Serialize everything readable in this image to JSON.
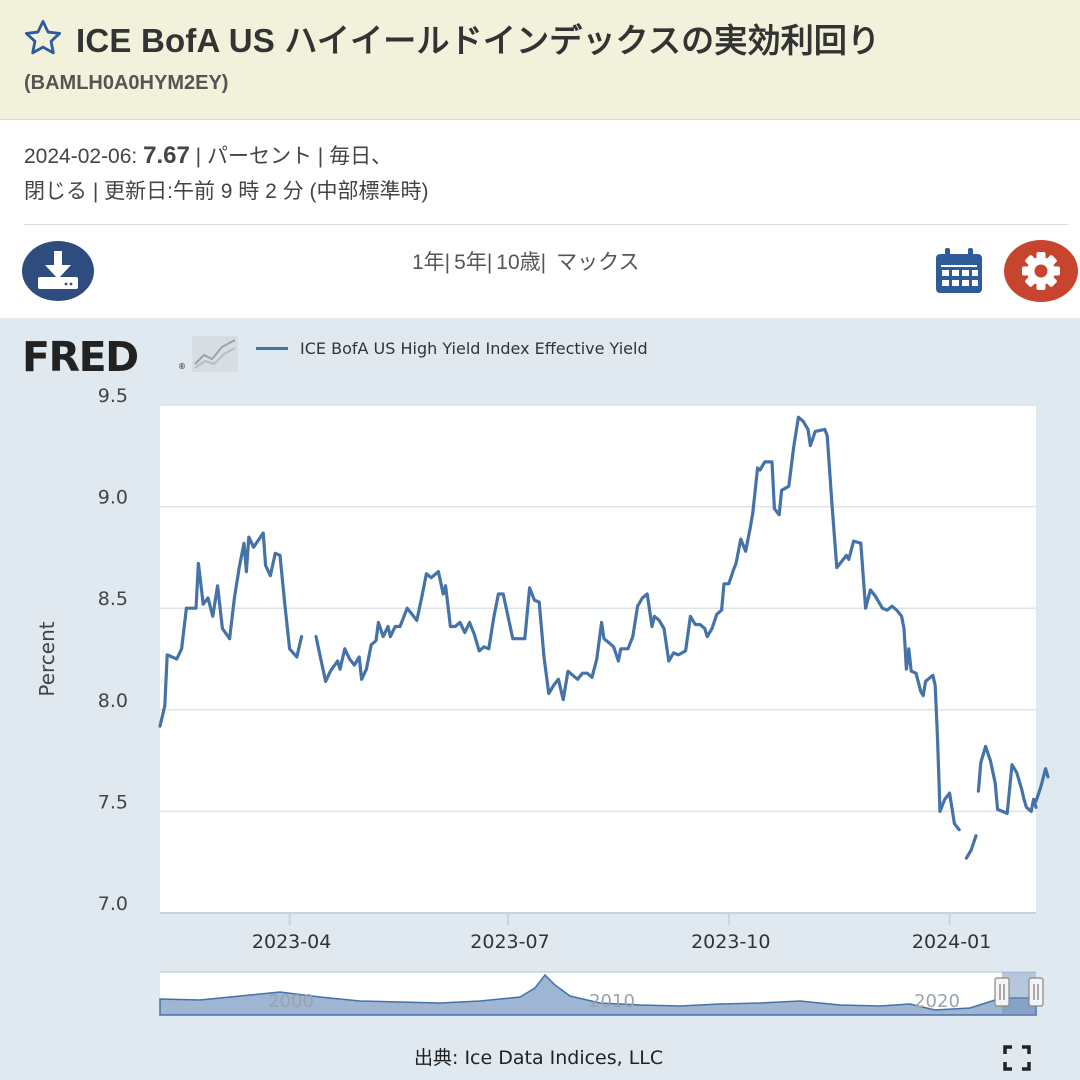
{
  "header": {
    "title": "ICE BofA US ハイイールドインデックスの実効利回り",
    "series_id": "(BAMLH0A0HYM2EY)",
    "star_icon": "star-outline-icon"
  },
  "meta": {
    "date": "2024-02-06:",
    "value": "7.67",
    "details": "| パーセント | 毎日、",
    "line2": "閉じる | 更新日:午前 9 時 2 分 (中部標準時)"
  },
  "toolbar": {
    "download_icon": "download-icon",
    "ranges": [
      "1年|",
      "5年|",
      "10歳|",
      "マックス"
    ],
    "calendar_icon": "calendar-icon",
    "settings_icon": "gear-icon"
  },
  "chart": {
    "logo": "FRED",
    "logo_reg": "®",
    "legend_label": "ICE BofA US High Yield Index Effective Yield",
    "source": "出典: Ice Data Indices, LLC",
    "fullscreen_icon": "fullscreen-icon",
    "navigator_labels": [
      "2000",
      "2010",
      "2020"
    ]
  },
  "colors": {
    "series": "#4572a7",
    "header_bg": "#f2f2dc",
    "chart_bg": "#e1e9f0",
    "download": "#2e4d7e",
    "settings": "#c7452e"
  },
  "chart_data": {
    "type": "line",
    "xlabel": "",
    "ylabel": "Percent",
    "ylim": [
      7.0,
      9.5
    ],
    "yticks": [
      "9.5",
      "9.0",
      "8.5",
      "8.0",
      "7.5",
      "7.0"
    ],
    "xticks": [
      "2023-04",
      "2023-07",
      "2023-10",
      "2024-01"
    ],
    "xlim": [
      "2023-02-06",
      "2024-02-06"
    ],
    "grid": true,
    "series": [
      {
        "name": "ICE BofA US High Yield Index Effective Yield",
        "segments": [
          [
            [
              "2023-02-06",
              7.92
            ],
            [
              "2023-02-08",
              8.02
            ],
            [
              "2023-02-09",
              8.27
            ],
            [
              "2023-02-13",
              8.25
            ],
            [
              "2023-02-15",
              8.3
            ],
            [
              "2023-02-17",
              8.5
            ],
            [
              "2023-02-21",
              8.5
            ],
            [
              "2023-02-22",
              8.72
            ],
            [
              "2023-02-24",
              8.52
            ],
            [
              "2023-02-26",
              8.55
            ],
            [
              "2023-02-28",
              8.46
            ],
            [
              "2023-03-02",
              8.61
            ],
            [
              "2023-03-04",
              8.4
            ],
            [
              "2023-03-07",
              8.35
            ],
            [
              "2023-03-09",
              8.55
            ],
            [
              "2023-03-11",
              8.7
            ],
            [
              "2023-03-13",
              8.82
            ],
            [
              "2023-03-14",
              8.68
            ],
            [
              "2023-03-15",
              8.85
            ],
            [
              "2023-03-17",
              8.8
            ],
            [
              "2023-03-21",
              8.87
            ],
            [
              "2023-03-22",
              8.71
            ],
            [
              "2023-03-24",
              8.66
            ],
            [
              "2023-03-26",
              8.77
            ],
            [
              "2023-03-28",
              8.76
            ],
            [
              "2023-03-30",
              8.52
            ],
            [
              "2023-04-01",
              8.3
            ],
            [
              "2023-04-04",
              8.26
            ],
            [
              "2023-04-06",
              8.36
            ]
          ],
          [
            [
              "2023-04-12",
              8.36
            ],
            [
              "2023-04-14",
              8.25
            ],
            [
              "2023-04-16",
              8.14
            ],
            [
              "2023-04-18",
              8.19
            ],
            [
              "2023-04-21",
              8.24
            ],
            [
              "2023-04-22",
              8.2
            ],
            [
              "2023-04-24",
              8.3
            ],
            [
              "2023-04-26",
              8.25
            ],
            [
              "2023-04-28",
              8.22
            ],
            [
              "2023-04-30",
              8.26
            ],
            [
              "2023-05-01",
              8.15
            ],
            [
              "2023-05-03",
              8.2
            ],
            [
              "2023-05-05",
              8.32
            ],
            [
              "2023-05-07",
              8.34
            ],
            [
              "2023-05-08",
              8.43
            ],
            [
              "2023-05-10",
              8.36
            ],
            [
              "2023-05-12",
              8.41
            ],
            [
              "2023-05-13",
              8.36
            ],
            [
              "2023-05-15",
              8.41
            ],
            [
              "2023-05-17",
              8.41
            ],
            [
              "2023-05-20",
              8.5
            ],
            [
              "2023-05-22",
              8.47
            ],
            [
              "2023-05-24",
              8.44
            ],
            [
              "2023-05-26",
              8.55
            ],
            [
              "2023-05-28",
              8.67
            ],
            [
              "2023-05-30",
              8.65
            ],
            [
              "2023-06-02",
              8.68
            ],
            [
              "2023-06-04",
              8.57
            ],
            [
              "2023-06-05",
              8.61
            ],
            [
              "2023-06-07",
              8.41
            ],
            [
              "2023-06-09",
              8.41
            ],
            [
              "2023-06-11",
              8.43
            ],
            [
              "2023-06-13",
              8.38
            ],
            [
              "2023-06-15",
              8.43
            ],
            [
              "2023-06-17",
              8.37
            ],
            [
              "2023-06-19",
              8.29
            ],
            [
              "2023-06-21",
              8.31
            ],
            [
              "2023-06-23",
              8.3
            ],
            [
              "2023-06-25",
              8.45
            ],
            [
              "2023-06-27",
              8.57
            ],
            [
              "2023-06-29",
              8.57
            ],
            [
              "2023-07-01",
              8.46
            ],
            [
              "2023-07-03",
              8.35
            ],
            [
              "2023-07-06",
              8.35
            ],
            [
              "2023-07-08",
              8.35
            ],
            [
              "2023-07-10",
              8.6
            ],
            [
              "2023-07-12",
              8.54
            ],
            [
              "2023-07-14",
              8.53
            ],
            [
              "2023-07-16",
              8.26
            ],
            [
              "2023-07-18",
              8.08
            ],
            [
              "2023-07-20",
              8.12
            ],
            [
              "2023-07-22",
              8.15
            ],
            [
              "2023-07-24",
              8.05
            ],
            [
              "2023-07-26",
              8.19
            ],
            [
              "2023-07-28",
              8.17
            ],
            [
              "2023-07-30",
              8.15
            ],
            [
              "2023-08-01",
              8.18
            ],
            [
              "2023-08-03",
              8.18
            ],
            [
              "2023-08-05",
              8.16
            ],
            [
              "2023-08-07",
              8.25
            ],
            [
              "2023-08-09",
              8.43
            ],
            [
              "2023-08-10",
              8.35
            ],
            [
              "2023-08-12",
              8.33
            ],
            [
              "2023-08-14",
              8.31
            ],
            [
              "2023-08-16",
              8.24
            ],
            [
              "2023-08-17",
              8.3
            ],
            [
              "2023-08-20",
              8.3
            ],
            [
              "2023-08-22",
              8.36
            ],
            [
              "2023-08-24",
              8.51
            ],
            [
              "2023-08-26",
              8.55
            ],
            [
              "2023-08-28",
              8.57
            ],
            [
              "2023-08-30",
              8.41
            ],
            [
              "2023-08-31",
              8.46
            ],
            [
              "2023-09-02",
              8.44
            ],
            [
              "2023-09-04",
              8.4
            ],
            [
              "2023-09-06",
              8.24
            ],
            [
              "2023-09-08",
              8.28
            ],
            [
              "2023-09-10",
              8.27
            ],
            [
              "2023-09-13",
              8.29
            ],
            [
              "2023-09-15",
              8.46
            ],
            [
              "2023-09-17",
              8.42
            ],
            [
              "2023-09-19",
              8.42
            ],
            [
              "2023-09-21",
              8.4
            ],
            [
              "2023-09-22",
              8.36
            ],
            [
              "2023-09-24",
              8.4
            ],
            [
              "2023-09-26",
              8.47
            ],
            [
              "2023-09-28",
              8.49
            ],
            [
              "2023-09-29",
              8.62
            ],
            [
              "2023-10-01",
              8.62
            ],
            [
              "2023-10-03",
              8.69
            ],
            [
              "2023-10-04",
              8.72
            ],
            [
              "2023-10-06",
              8.84
            ],
            [
              "2023-10-08",
              8.78
            ],
            [
              "2023-10-10",
              8.9
            ],
            [
              "2023-10-11",
              8.97
            ],
            [
              "2023-10-13",
              9.19
            ],
            [
              "2023-10-14",
              9.18
            ],
            [
              "2023-10-16",
              9.22
            ],
            [
              "2023-10-19",
              9.22
            ],
            [
              "2023-10-20",
              8.99
            ],
            [
              "2023-10-22",
              8.96
            ],
            [
              "2023-10-23",
              9.08
            ],
            [
              "2023-10-26",
              9.1
            ],
            [
              "2023-10-28",
              9.29
            ],
            [
              "2023-10-30",
              9.44
            ],
            [
              "2023-11-01",
              9.42
            ],
            [
              "2023-11-03",
              9.38
            ],
            [
              "2023-11-04",
              9.3
            ],
            [
              "2023-11-06",
              9.37
            ],
            [
              "2023-11-10",
              9.38
            ],
            [
              "2023-11-11",
              9.35
            ],
            [
              "2023-11-13",
              9.01
            ],
            [
              "2023-11-15",
              8.7
            ],
            [
              "2023-11-17",
              8.73
            ],
            [
              "2023-11-19",
              8.76
            ],
            [
              "2023-11-20",
              8.74
            ],
            [
              "2023-11-22",
              8.83
            ],
            [
              "2023-11-25",
              8.82
            ],
            [
              "2023-11-27",
              8.5
            ],
            [
              "2023-11-29",
              8.59
            ],
            [
              "2023-12-01",
              8.56
            ],
            [
              "2023-12-03",
              8.52
            ],
            [
              "2023-12-04",
              8.5
            ],
            [
              "2023-12-06",
              8.49
            ],
            [
              "2023-12-08",
              8.51
            ],
            [
              "2023-12-10",
              8.49
            ],
            [
              "2023-12-12",
              8.46
            ],
            [
              "2023-12-13",
              8.4
            ],
            [
              "2023-12-14",
              8.2
            ],
            [
              "2023-12-15",
              8.3
            ],
            [
              "2023-12-16",
              8.19
            ],
            [
              "2023-12-18",
              8.18
            ],
            [
              "2023-12-20",
              8.09
            ],
            [
              "2023-12-21",
              8.07
            ],
            [
              "2023-12-22",
              8.14
            ],
            [
              "2023-12-24",
              8.16
            ],
            [
              "2023-12-25",
              8.17
            ],
            [
              "2023-12-26",
              8.12
            ],
            [
              "2023-12-27",
              7.85
            ],
            [
              "2023-12-28",
              7.5
            ],
            [
              "2023-12-30",
              7.56
            ],
            [
              "2024-01-01",
              7.59
            ],
            [
              "2024-01-03",
              7.44
            ],
            [
              "2024-01-05",
              7.41
            ]
          ],
          [
            [
              "2024-01-08",
              7.27
            ],
            [
              "2024-01-10",
              7.31
            ],
            [
              "2024-01-12",
              7.38
            ]
          ],
          [
            [
              "2024-01-13",
              7.6
            ],
            [
              "2024-01-14",
              7.74
            ],
            [
              "2024-01-16",
              7.82
            ],
            [
              "2024-01-18",
              7.75
            ],
            [
              "2024-01-20",
              7.64
            ],
            [
              "2024-01-21",
              7.51
            ],
            [
              "2024-01-25",
              7.49
            ],
            [
              "2024-01-27",
              7.73
            ],
            [
              "2024-01-29",
              7.69
            ],
            [
              "2024-01-30",
              7.65
            ],
            [
              "2024-01-31",
              7.61
            ],
            [
              "2024-02-01",
              7.56
            ],
            [
              "2024-02-02",
              7.52
            ],
            [
              "2024-02-04",
              7.5
            ],
            [
              "2024-02-05",
              7.56
            ],
            [
              "2024-02-06",
              7.52
            ]
          ],
          [
            [
              "2024-02-06",
              7.55
            ],
            [
              "2024-02-08",
              7.62
            ],
            [
              "2024-02-10",
              7.71
            ],
            [
              "2024-02-11",
              7.67
            ]
          ]
        ]
      }
    ]
  }
}
